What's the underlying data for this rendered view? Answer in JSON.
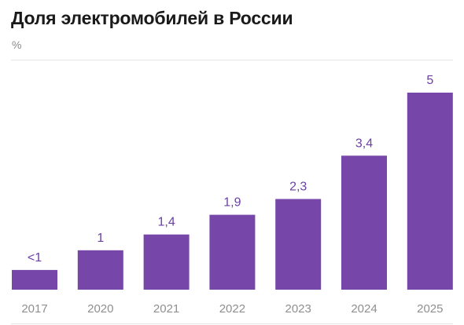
{
  "title": "Доля электромобилей в России",
  "unit": "%",
  "chart_data": {
    "type": "bar",
    "title": "Доля электромобилей в России",
    "ylabel": "%",
    "categories": [
      "2017",
      "2020",
      "2021",
      "2022",
      "2023",
      "2024",
      "2025"
    ],
    "values": [
      0.5,
      1,
      1.4,
      1.9,
      2.3,
      3.4,
      5
    ],
    "value_labels": [
      "<1",
      "1",
      "1,4",
      "1,9",
      "2,3",
      "3,4",
      "5"
    ],
    "ylim": [
      0,
      5
    ],
    "grid": false,
    "bar_color": "#7746a9"
  }
}
